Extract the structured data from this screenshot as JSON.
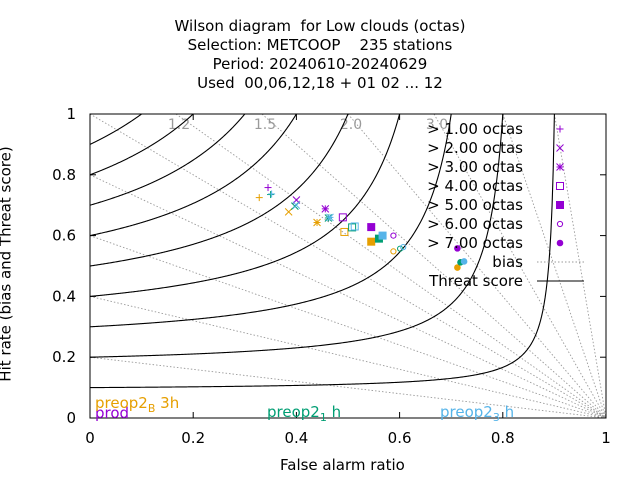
{
  "title_lines": [
    "Wilson diagram  for Low clouds (octas)",
    "Selection: METCOOP    235 stations",
    "Period: 20240610-20240629",
    "Used  00,06,12,18 + 01 02 ... 12"
  ],
  "chart_data": {
    "type": "scatter",
    "xlabel": "False alarm ratio",
    "ylabel": "Hit rate (bias and Threat score)",
    "xlim": [
      0,
      1
    ],
    "ylim": [
      0,
      1
    ],
    "x_ticks": [
      "0",
      "0.2",
      "0.4",
      "0.6",
      "0.8",
      "1"
    ],
    "y_ticks": [
      "0",
      "0.2",
      "0.4",
      "0.6",
      "0.8",
      "1"
    ],
    "x_tick_values": [
      0,
      0.2,
      0.4,
      0.6,
      0.8,
      1
    ],
    "y_tick_values": [
      0,
      0.2,
      0.4,
      0.6,
      0.8,
      1
    ],
    "bias_values": [
      0.2,
      0.4,
      0.6,
      0.8,
      1.0,
      1.2,
      1.5,
      2.0,
      3.0,
      5.0,
      10.0
    ],
    "bias_labels": [
      {
        "bias": 1.2,
        "text": "1.2"
      },
      {
        "bias": 1.5,
        "text": "1.5"
      },
      {
        "bias": 2.0,
        "text": "2.0"
      },
      {
        "bias": 3.0,
        "text": "3.0"
      }
    ],
    "threat_scores": [
      0.1,
      0.2,
      0.3,
      0.4,
      0.5,
      0.6,
      0.7,
      0.8,
      0.9
    ],
    "legend": [
      {
        "label": "> 1.00 octas",
        "symbol": "plus"
      },
      {
        "label": "> 2.00 octas",
        "symbol": "cross"
      },
      {
        "label": "> 3.00 octas",
        "symbol": "star"
      },
      {
        "label": "> 4.00 octas",
        "symbol": "box"
      },
      {
        "label": "> 5.00 octas",
        "symbol": "filled-box"
      },
      {
        "label": "> 6.00 octas",
        "symbol": "circle"
      },
      {
        "label": "> 7.00 octas",
        "symbol": "filled-circle"
      },
      {
        "label": "bias",
        "symbol": "dotted-line"
      },
      {
        "label": "Threat score",
        "symbol": "solid-line"
      }
    ],
    "series": [
      {
        "name": "prod",
        "color": "#9400d3",
        "points": [
          [
            0.345,
            0.758
          ],
          [
            0.4,
            0.717
          ],
          [
            0.456,
            0.688
          ],
          [
            0.49,
            0.66
          ],
          [
            0.545,
            0.628
          ],
          [
            0.588,
            0.6
          ],
          [
            0.712,
            0.558
          ]
        ]
      },
      {
        "name": "preop2_B 3h",
        "color": "#e69f00",
        "points": [
          [
            0.328,
            0.725
          ],
          [
            0.385,
            0.678
          ],
          [
            0.44,
            0.643
          ],
          [
            0.493,
            0.612
          ],
          [
            0.545,
            0.58
          ],
          [
            0.588,
            0.548
          ],
          [
            0.712,
            0.495
          ]
        ]
      },
      {
        "name": "preop2_1 h",
        "color": "#009e73",
        "points": [
          [
            0.35,
            0.735
          ],
          [
            0.397,
            0.697
          ],
          [
            0.462,
            0.658
          ],
          [
            0.508,
            0.627
          ],
          [
            0.56,
            0.59
          ],
          [
            0.601,
            0.557
          ],
          [
            0.718,
            0.512
          ]
        ]
      },
      {
        "name": "preop2_3 h",
        "color": "#56b4e9",
        "points": [
          [
            0.352,
            0.737
          ],
          [
            0.4,
            0.7
          ],
          [
            0.465,
            0.66
          ],
          [
            0.513,
            0.63
          ],
          [
            0.567,
            0.6
          ],
          [
            0.607,
            0.562
          ],
          [
            0.725,
            0.515
          ]
        ]
      }
    ]
  },
  "models": [
    {
      "name": "prod",
      "color": "#9400d3"
    },
    {
      "base": "preop2",
      "sub": "B",
      "rest": " 3h",
      "color": "#e69f00"
    },
    {
      "base": "preop2",
      "sub": "1",
      "rest": " h",
      "color": "#009e73"
    },
    {
      "base": "preop2",
      "sub": "3",
      "rest": " h",
      "color": "#56b4e9"
    }
  ]
}
